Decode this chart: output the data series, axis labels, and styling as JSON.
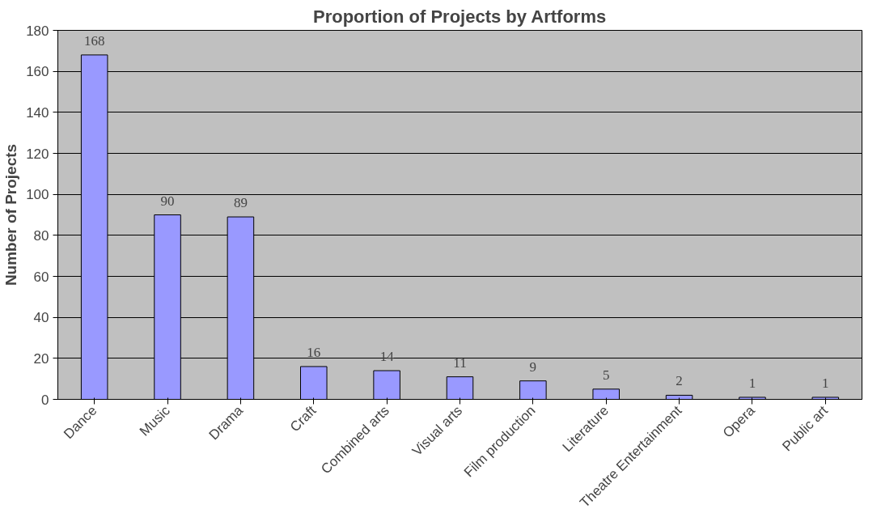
{
  "chart_data": {
    "type": "bar",
    "title": "Proportion of Projects by Artforms",
    "ylabel": "Number of Projects",
    "categories": [
      "Dance",
      "Music",
      "Drama",
      "Craft",
      "Combined arts",
      "Visual arts",
      "Film production",
      "Literature",
      "Theatre Entertainment",
      "Opera",
      "Public art"
    ],
    "values": [
      168,
      90,
      89,
      16,
      14,
      11,
      9,
      5,
      2,
      1,
      1
    ],
    "color": "#9999ff",
    "ylim": [
      0,
      180
    ],
    "yticks": [
      0,
      20,
      40,
      60,
      80,
      100,
      120,
      140,
      160,
      180
    ],
    "grid": "y",
    "data_labels": true
  }
}
